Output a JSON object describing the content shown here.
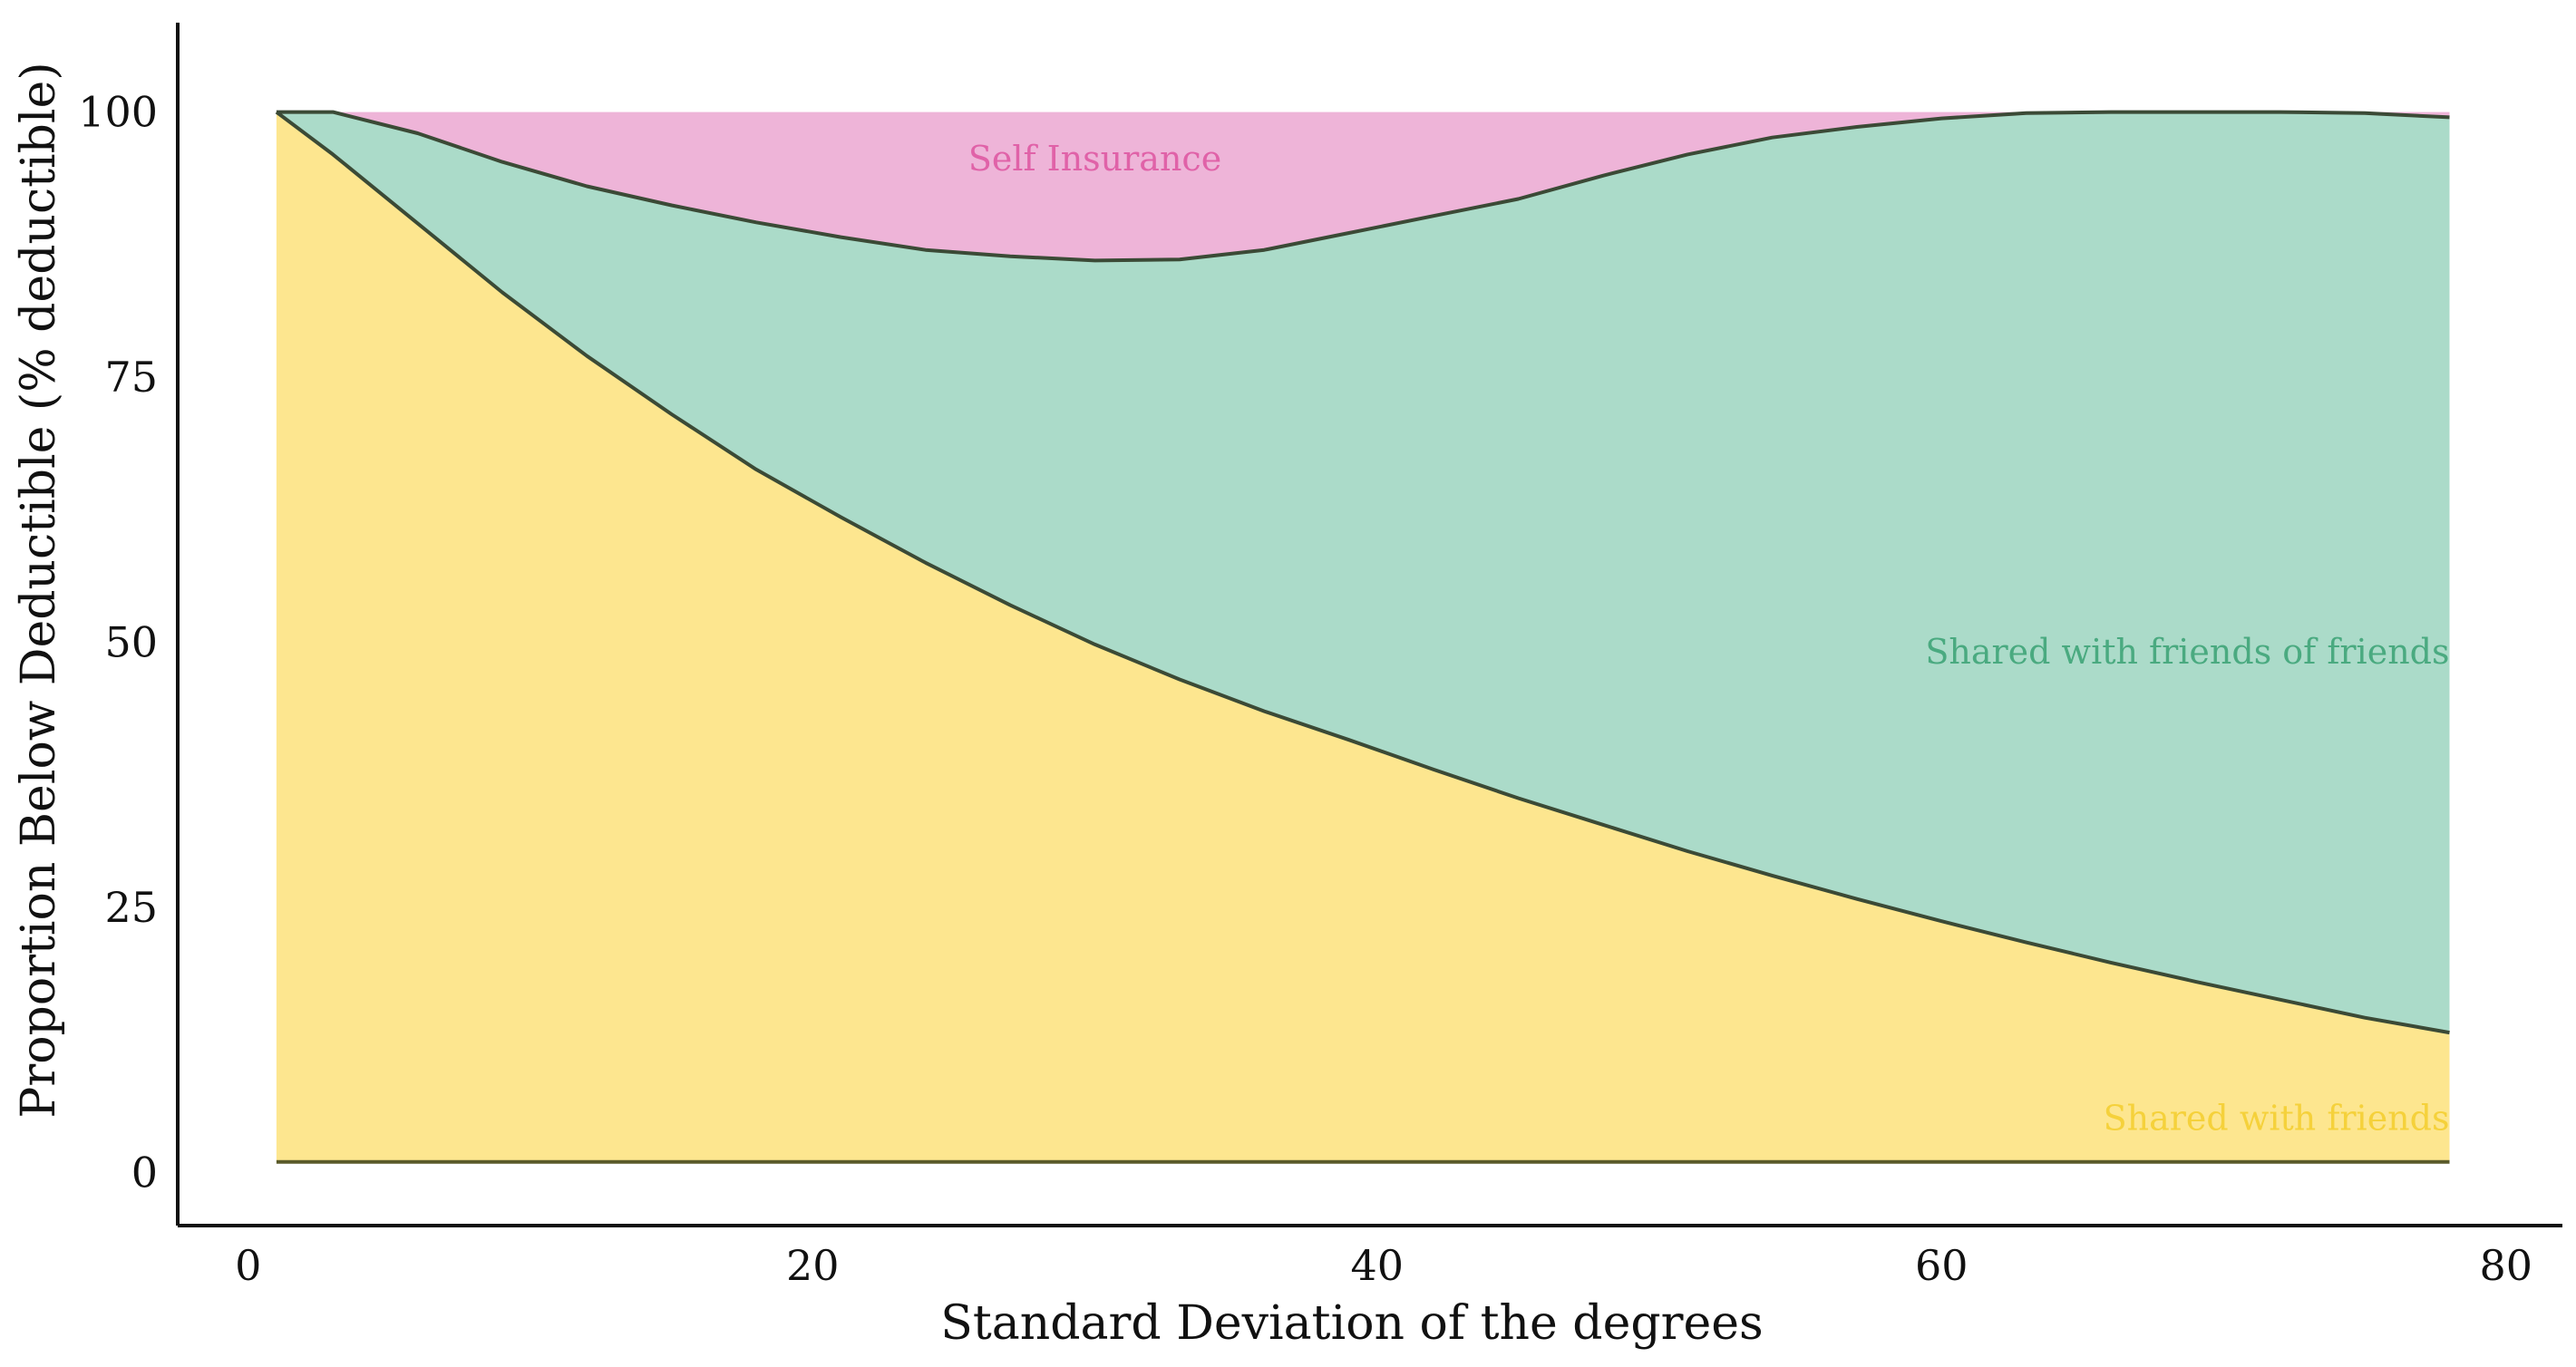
{
  "chart_data": {
    "type": "area",
    "xlabel": "Standard Deviation of the degrees",
    "ylabel": "Proportion Below Deductible (% deductible)",
    "xlim": [
      -2.5,
      82
    ],
    "ylim": [
      -5,
      108
    ],
    "xticks": [
      0,
      20,
      40,
      60,
      80
    ],
    "yticks": [
      0,
      25,
      50,
      75,
      100
    ],
    "grid": false,
    "legend": "none",
    "x": [
      1,
      3,
      6,
      9,
      12,
      15,
      18,
      21,
      24,
      27,
      30,
      33,
      36,
      39,
      42,
      45,
      48,
      51,
      54,
      57,
      60,
      63,
      66,
      69,
      72,
      75,
      78
    ],
    "baseline": 1,
    "boundaries": [
      {
        "name": "Shared with friends",
        "values": [
          100,
          96,
          89.5,
          83,
          77,
          71.5,
          66.3,
          61.8,
          57.5,
          53.5,
          49.8,
          46.5,
          43.5,
          40.8,
          38,
          35.3,
          32.8,
          30.3,
          28,
          25.8,
          23.7,
          21.7,
          19.8,
          18,
          16.3,
          14.6,
          13.2
        ]
      },
      {
        "name": "Shared with friends of friends",
        "values": [
          100,
          100,
          98,
          95.3,
          93,
          91.2,
          89.6,
          88.2,
          87,
          86.4,
          86,
          86.1,
          87,
          88.6,
          90.2,
          91.8,
          94,
          96,
          97.6,
          98.6,
          99.4,
          99.9,
          100,
          100,
          100,
          99.9,
          99.5
        ]
      },
      {
        "name": "Self Insurance",
        "values": [
          100,
          100,
          100,
          100,
          100,
          100,
          100,
          100,
          100,
          100,
          100,
          100,
          100,
          100,
          100,
          100,
          100,
          100,
          100,
          100,
          100,
          100,
          100,
          100,
          100,
          100,
          100
        ]
      }
    ],
    "labels": {
      "shared_friends": "Shared with friends",
      "shared_fof": "Shared with friends of friends",
      "self_insurance": "Self Insurance"
    },
    "colors": {
      "shared_friends_fill": "#fde68f",
      "shared_fof_fill": "#abdbc9",
      "self_insurance_fill": "#eeb4d8",
      "shared_friends_text": "#f5d13b",
      "shared_fof_text": "#4aaa80",
      "self_insurance_text": "#e062a8",
      "boundary_line": "#3b4a36",
      "axis": "#111111"
    }
  }
}
